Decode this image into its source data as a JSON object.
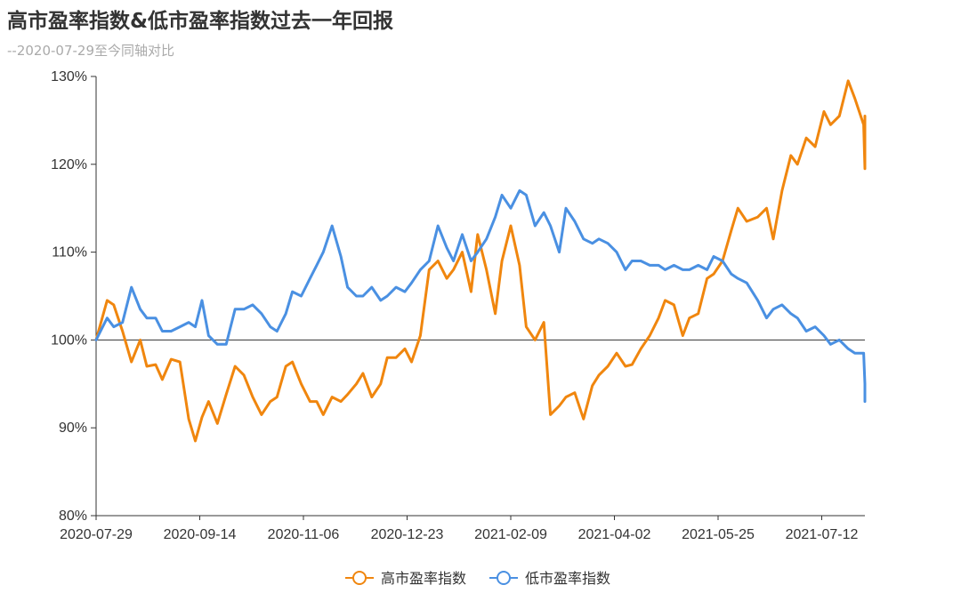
{
  "title": "高市盈率指数&低市盈率指数过去一年回报",
  "subtitle": "--2020-07-29至今同轴对比",
  "chart_data": {
    "type": "line",
    "title": "高市盈率指数&低市盈率指数过去一年回报",
    "subtitle": "--2020-07-29至今同轴对比",
    "x_tick_labels": [
      "2020-07-29",
      "2020-09-14",
      "2020-11-06",
      "2020-12-23",
      "2021-02-09",
      "2021-04-02",
      "2021-05-25",
      "2021-07-12"
    ],
    "y_tick_labels": [
      "80%",
      "90%",
      "100%",
      "110%",
      "120%",
      "130%"
    ],
    "ylim": [
      80,
      130
    ],
    "y_unit": "%",
    "baseline": 100,
    "grid": false,
    "legend": "bottom-center",
    "series": [
      {
        "name": "高市盈率指数",
        "color": "#f0860e",
        "x": [
          "2020-07-29",
          "2020-08-03",
          "2020-08-06",
          "2020-08-10",
          "2020-08-14",
          "2020-08-18",
          "2020-08-21",
          "2020-08-25",
          "2020-08-28",
          "2020-09-01",
          "2020-09-05",
          "2020-09-09",
          "2020-09-12",
          "2020-09-15",
          "2020-09-18",
          "2020-09-22",
          "2020-09-26",
          "2020-09-30",
          "2020-10-04",
          "2020-10-08",
          "2020-10-12",
          "2020-10-16",
          "2020-10-19",
          "2020-10-23",
          "2020-10-26",
          "2020-10-30",
          "2020-11-03",
          "2020-11-06",
          "2020-11-09",
          "2020-11-13",
          "2020-11-17",
          "2020-11-20",
          "2020-11-24",
          "2020-11-27",
          "2020-12-01",
          "2020-12-05",
          "2020-12-08",
          "2020-12-12",
          "2020-12-16",
          "2020-12-19",
          "2020-12-23",
          "2020-12-27",
          "2020-12-31",
          "2021-01-04",
          "2021-01-07",
          "2021-01-11",
          "2021-01-15",
          "2021-01-18",
          "2021-01-22",
          "2021-01-26",
          "2021-01-29",
          "2021-02-02",
          "2021-02-06",
          "2021-02-09",
          "2021-02-13",
          "2021-02-17",
          "2021-02-20",
          "2021-02-24",
          "2021-02-27",
          "2021-03-03",
          "2021-03-07",
          "2021-03-11",
          "2021-03-14",
          "2021-03-18",
          "2021-03-22",
          "2021-03-26",
          "2021-03-29",
          "2021-04-02",
          "2021-04-06",
          "2021-04-10",
          "2021-04-13",
          "2021-04-17",
          "2021-04-21",
          "2021-04-24",
          "2021-04-28",
          "2021-05-02",
          "2021-05-05",
          "2021-05-09",
          "2021-05-13",
          "2021-05-16",
          "2021-05-20",
          "2021-05-25",
          "2021-05-29",
          "2021-06-01",
          "2021-06-05",
          "2021-06-09",
          "2021-06-12",
          "2021-06-16",
          "2021-06-20",
          "2021-06-24",
          "2021-06-27",
          "2021-07-01",
          "2021-07-05",
          "2021-07-08",
          "2021-07-12",
          "2021-07-16",
          "2021-07-19",
          "2021-07-23",
          "2021-07-27",
          "2021-07-30"
        ],
        "values": [
          100.0,
          104.5,
          104.0,
          101.0,
          97.5,
          100.0,
          97.0,
          97.2,
          95.5,
          97.8,
          97.5,
          91.0,
          88.5,
          91.2,
          93.0,
          90.5,
          93.8,
          97.0,
          96.0,
          93.5,
          91.5,
          93.0,
          93.5,
          97.0,
          97.5,
          95.0,
          93.0,
          93.0,
          91.5,
          93.5,
          93.0,
          93.8,
          95.0,
          96.2,
          93.5,
          95.0,
          98.0,
          98.0,
          99.0,
          97.5,
          100.5,
          108.0,
          109.0,
          107.0,
          108.0,
          110.0,
          105.5,
          112.0,
          108.0,
          103.0,
          109.0,
          113.0,
          108.5,
          101.5,
          100.0,
          102.0,
          91.5,
          92.5,
          93.5,
          94.0,
          91.0,
          94.8,
          96.0,
          97.0,
          98.5,
          97.0,
          97.2,
          99.0,
          100.5,
          102.5,
          104.5,
          104.0,
          100.5,
          102.5,
          103.0,
          107.0,
          107.5,
          109.0,
          112.5,
          115.0,
          113.5,
          114.0,
          115.0,
          111.5,
          117.0,
          121.0,
          120.0,
          123.0,
          122.0,
          126.0,
          124.5,
          125.5,
          129.5,
          127.5,
          124.5,
          119.5,
          121.0,
          125.5,
          125.5,
          125.5
        ]
      },
      {
        "name": "低市盈率指数",
        "color": "#4a90e2",
        "x": [
          "2020-07-29",
          "2020-08-03",
          "2020-08-06",
          "2020-08-10",
          "2020-08-14",
          "2020-08-18",
          "2020-08-21",
          "2020-08-25",
          "2020-08-28",
          "2020-09-01",
          "2020-09-05",
          "2020-09-09",
          "2020-09-12",
          "2020-09-15",
          "2020-09-18",
          "2020-09-22",
          "2020-09-26",
          "2020-09-30",
          "2020-10-04",
          "2020-10-08",
          "2020-10-12",
          "2020-10-16",
          "2020-10-19",
          "2020-10-23",
          "2020-10-26",
          "2020-10-30",
          "2020-11-03",
          "2020-11-06",
          "2020-11-09",
          "2020-11-13",
          "2020-11-17",
          "2020-11-20",
          "2020-11-24",
          "2020-11-27",
          "2020-12-01",
          "2020-12-05",
          "2020-12-08",
          "2020-12-12",
          "2020-12-16",
          "2020-12-19",
          "2020-12-23",
          "2020-12-27",
          "2020-12-31",
          "2021-01-04",
          "2021-01-07",
          "2021-01-11",
          "2021-01-15",
          "2021-01-18",
          "2021-01-22",
          "2021-01-26",
          "2021-01-29",
          "2021-02-02",
          "2021-02-06",
          "2021-02-09",
          "2021-02-13",
          "2021-02-17",
          "2021-02-20",
          "2021-02-24",
          "2021-02-27",
          "2021-03-03",
          "2021-03-07",
          "2021-03-11",
          "2021-03-14",
          "2021-03-18",
          "2021-03-22",
          "2021-03-26",
          "2021-03-29",
          "2021-04-02",
          "2021-04-06",
          "2021-04-10",
          "2021-04-13",
          "2021-04-17",
          "2021-04-21",
          "2021-04-24",
          "2021-04-28",
          "2021-05-02",
          "2021-05-05",
          "2021-05-09",
          "2021-05-13",
          "2021-05-16",
          "2021-05-20",
          "2021-05-25",
          "2021-05-29",
          "2021-06-01",
          "2021-06-05",
          "2021-06-09",
          "2021-06-12",
          "2021-06-16",
          "2021-06-20",
          "2021-06-24",
          "2021-06-27",
          "2021-07-01",
          "2021-07-05",
          "2021-07-08",
          "2021-07-12",
          "2021-07-16",
          "2021-07-19",
          "2021-07-23",
          "2021-07-27",
          "2021-07-30"
        ],
        "values": [
          100.0,
          102.5,
          101.5,
          102.0,
          106.0,
          103.5,
          102.5,
          102.5,
          101.0,
          101.0,
          101.5,
          102.0,
          101.5,
          104.5,
          100.5,
          99.5,
          99.5,
          103.5,
          103.5,
          104.0,
          103.0,
          101.5,
          101.0,
          103.0,
          105.5,
          105.0,
          107.0,
          108.5,
          110.0,
          113.0,
          109.5,
          106.0,
          105.0,
          105.0,
          106.0,
          104.5,
          105.0,
          106.0,
          105.5,
          106.5,
          108.0,
          109.0,
          113.0,
          110.5,
          109.0,
          112.0,
          109.0,
          110.0,
          111.5,
          114.0,
          116.5,
          115.0,
          117.0,
          116.5,
          113.0,
          114.5,
          113.0,
          110.0,
          115.0,
          113.5,
          111.5,
          111.0,
          111.5,
          111.0,
          110.0,
          108.0,
          109.0,
          109.0,
          108.5,
          108.5,
          108.0,
          108.5,
          108.0,
          108.0,
          108.5,
          108.0,
          109.5,
          109.0,
          107.5,
          107.0,
          106.5,
          104.5,
          102.5,
          103.5,
          104.0,
          103.0,
          102.5,
          101.0,
          101.5,
          100.5,
          99.5,
          100.0,
          99.0,
          98.5,
          98.5,
          95.0,
          93.0,
          93.0,
          93.0,
          93.0
        ]
      }
    ]
  }
}
